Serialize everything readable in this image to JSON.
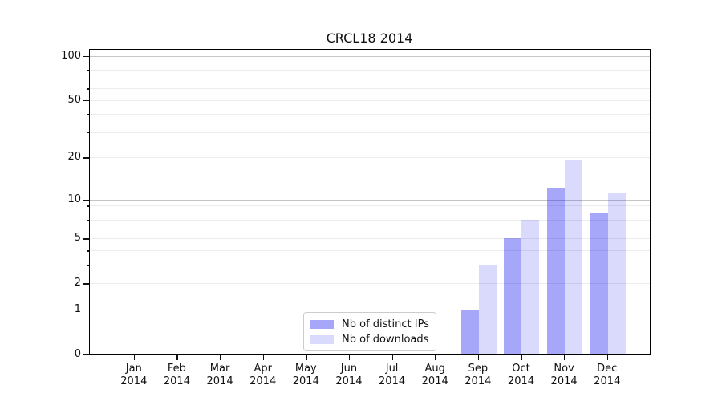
{
  "chart_data": {
    "type": "bar",
    "title": "CRCL18 2014",
    "categories": [
      "Jan 2014",
      "Feb 2014",
      "Mar 2014",
      "Apr 2014",
      "May 2014",
      "Jun 2014",
      "Jul 2014",
      "Aug 2014",
      "Sep 2014",
      "Oct 2014",
      "Nov 2014",
      "Dec 2014"
    ],
    "series": [
      {
        "name": "Nb of distinct IPs",
        "color": "rgba(0,0,240,0.345)",
        "values": [
          0,
          0,
          0,
          0,
          0,
          0,
          0,
          0,
          1,
          5,
          12,
          8
        ]
      },
      {
        "name": "Nb of downloads",
        "color": "rgba(0,0,240,0.145)",
        "values": [
          0,
          0,
          0,
          0,
          0,
          0,
          0,
          0,
          3,
          7,
          19,
          11
        ]
      }
    ],
    "xlabel": "",
    "ylabel": "",
    "yscale": "log1p",
    "ylim": [
      0,
      110
    ],
    "yticks": [
      100,
      50,
      20,
      10,
      5,
      2,
      1,
      0
    ],
    "ytick_labels": [
      "100",
      "50",
      "20",
      "10",
      "5",
      "2",
      "1",
      "0"
    ],
    "y_major_gridlines": [
      1,
      10,
      100
    ],
    "y_minor_gridlines": [
      2,
      3,
      4,
      5,
      6,
      7,
      8,
      9,
      20,
      30,
      40,
      50,
      60,
      70,
      80,
      90
    ],
    "y_minor_unlabeled_ticks": [
      3,
      4,
      6,
      7,
      8,
      9,
      30,
      40,
      60,
      70,
      80,
      90
    ],
    "grid": "on",
    "legend_position": "lower center",
    "colors": {
      "bar_distinct_ips": "rgba(0,0,240,0.345)",
      "bar_downloads": "rgba(0,0,240,0.145)",
      "grid_major": "#c6c6c6",
      "grid_minor": "#ececec",
      "axis": "#000000",
      "text": "#111111",
      "legend_border": "#cccccc"
    }
  }
}
